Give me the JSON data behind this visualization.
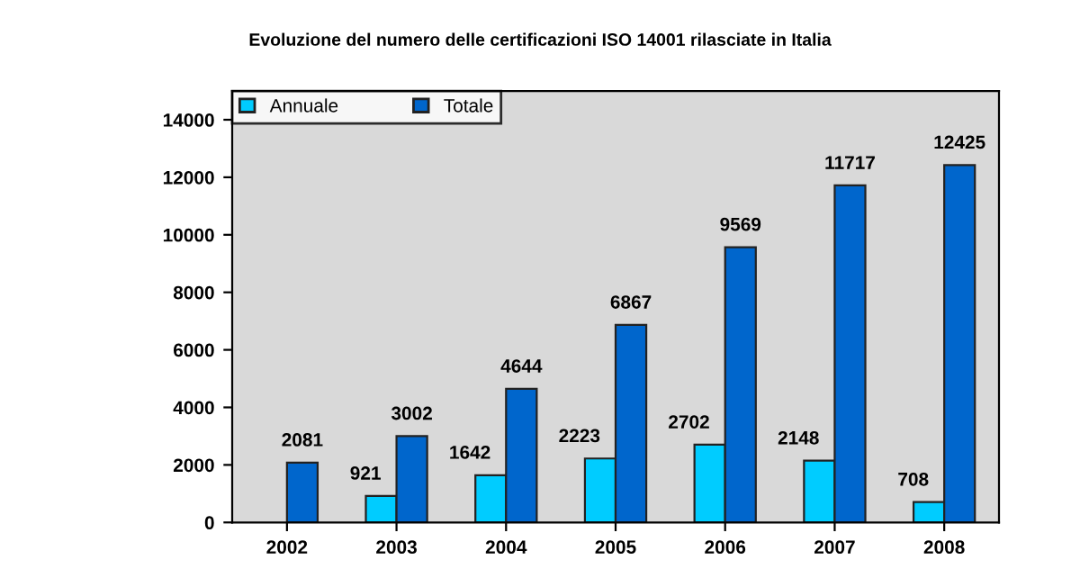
{
  "chart_data": {
    "type": "bar",
    "title": "Evoluzione del numero delle certificazioni ISO 14001 rilasciate in Italia",
    "categories": [
      "2002",
      "2003",
      "2004",
      "2005",
      "2006",
      "2007",
      "2008"
    ],
    "series": [
      {
        "name": "Annuale",
        "color": "#00ccff",
        "values": [
          null,
          921,
          1642,
          2223,
          2702,
          2148,
          708
        ]
      },
      {
        "name": "Totale",
        "color": "#0066cc",
        "values": [
          2081,
          3002,
          4644,
          6867,
          9569,
          11717,
          12425
        ]
      }
    ],
    "ylim": [
      0,
      15000
    ],
    "yticks": [
      0,
      2000,
      4000,
      6000,
      8000,
      10000,
      12000,
      14000
    ],
    "data_labels": true,
    "grid": false,
    "legend": "top left"
  }
}
